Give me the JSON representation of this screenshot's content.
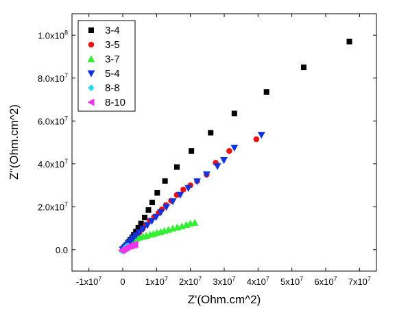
{
  "chart_data": {
    "type": "scatter",
    "xlabel": "Z'(Ohm.cm^2)",
    "ylabel": "Z''(Ohm.cm^2)",
    "xlim": [
      -15000000,
      75000000
    ],
    "ylim": [
      -10000000,
      110000000
    ],
    "x_ticks": [
      {
        "value": -10000000,
        "base": "-1x10",
        "exp": "7"
      },
      {
        "value": 0,
        "base": "0",
        "exp": ""
      },
      {
        "value": 10000000,
        "base": "1x10",
        "exp": "7"
      },
      {
        "value": 20000000,
        "base": "2x10",
        "exp": "7"
      },
      {
        "value": 30000000,
        "base": "3x10",
        "exp": "7"
      },
      {
        "value": 40000000,
        "base": "4x10",
        "exp": "7"
      },
      {
        "value": 50000000,
        "base": "5x10",
        "exp": "7"
      },
      {
        "value": 60000000,
        "base": "6x10",
        "exp": "7"
      },
      {
        "value": 70000000,
        "base": "7x10",
        "exp": "7"
      }
    ],
    "y_ticks": [
      {
        "value": 0,
        "base": "0.0",
        "exp": ""
      },
      {
        "value": 20000000,
        "base": "2.0x10",
        "exp": "7"
      },
      {
        "value": 40000000,
        "base": "4.0x10",
        "exp": "7"
      },
      {
        "value": 60000000,
        "base": "6.0x10",
        "exp": "7"
      },
      {
        "value": 80000000,
        "base": "8.0x10",
        "exp": "7"
      },
      {
        "value": 100000000,
        "base": "1.0x10",
        "exp": "8"
      }
    ],
    "legend_position": "top-left",
    "series": [
      {
        "name": "3-4",
        "marker": "square",
        "color": "#000000",
        "points": [
          [
            0,
            0
          ],
          [
            200000,
            400000
          ],
          [
            500000,
            1000000
          ],
          [
            800000,
            1500000
          ],
          [
            1100000,
            2200000
          ],
          [
            1500000,
            3000000
          ],
          [
            1900000,
            3800000
          ],
          [
            2300000,
            4700000
          ],
          [
            2800000,
            5800000
          ],
          [
            3300000,
            7000000
          ],
          [
            3900000,
            8400000
          ],
          [
            4600000,
            10200000
          ],
          [
            5400000,
            12200000
          ],
          [
            6500000,
            15000000
          ],
          [
            7600000,
            18500000
          ],
          [
            8700000,
            22000000
          ],
          [
            10200000,
            26500000
          ],
          [
            12500000,
            32000000
          ],
          [
            16000000,
            38500000
          ],
          [
            20300000,
            46000000
          ],
          [
            26000000,
            54500000
          ],
          [
            33000000,
            63500000
          ],
          [
            42500000,
            73500000
          ],
          [
            53500000,
            85000000
          ],
          [
            67000000,
            97000000
          ]
        ]
      },
      {
        "name": "3-5",
        "marker": "circle",
        "color": "#ee1111",
        "points": [
          [
            0,
            0
          ],
          [
            300000,
            500000
          ],
          [
            700000,
            1100000
          ],
          [
            1100000,
            1800000
          ],
          [
            1500000,
            2600000
          ],
          [
            2000000,
            3500000
          ],
          [
            2600000,
            4500000
          ],
          [
            3200000,
            5500000
          ],
          [
            4000000,
            6600000
          ],
          [
            4900000,
            8000000
          ],
          [
            5900000,
            9700000
          ],
          [
            6900000,
            11600000
          ],
          [
            8000000,
            13500000
          ],
          [
            9300000,
            15200000
          ],
          [
            10600000,
            17100000
          ],
          [
            11600000,
            18800000
          ],
          [
            12800000,
            20800000
          ],
          [
            14300000,
            22800000
          ],
          [
            16000000,
            25500000
          ],
          [
            17900000,
            28000000
          ],
          [
            20000000,
            30000000
          ],
          [
            22000000,
            32000000
          ],
          [
            24800000,
            35000000
          ],
          [
            27500000,
            40500000
          ],
          [
            31500000,
            46000000
          ],
          [
            39500000,
            51500000
          ]
        ]
      },
      {
        "name": "3-7",
        "marker": "triangle-up",
        "color": "#33ee33",
        "points": [
          [
            0,
            0
          ],
          [
            300000,
            800000
          ],
          [
            600000,
            1500000
          ],
          [
            900000,
            2100000
          ],
          [
            1200000,
            2700000
          ],
          [
            1600000,
            3300000
          ],
          [
            2000000,
            3800000
          ],
          [
            2500000,
            4300000
          ],
          [
            3000000,
            4700000
          ],
          [
            3600000,
            5000000
          ],
          [
            4200000,
            5300000
          ],
          [
            5000000,
            5700000
          ],
          [
            6000000,
            6100000
          ],
          [
            7000000,
            6500000
          ],
          [
            8100000,
            7000000
          ],
          [
            9100000,
            7400000
          ],
          [
            10100000,
            7900000
          ],
          [
            11200000,
            8300000
          ],
          [
            12300000,
            8800000
          ],
          [
            13500000,
            9300000
          ],
          [
            14800000,
            9900000
          ],
          [
            16100000,
            10400000
          ],
          [
            17500000,
            10900000
          ],
          [
            18800000,
            11600000
          ],
          [
            20000000,
            12200000
          ],
          [
            21300000,
            12600000
          ]
        ]
      },
      {
        "name": "5-4",
        "marker": "triangle-down",
        "color": "#1133dd",
        "points": [
          [
            0,
            0
          ],
          [
            400000,
            500000
          ],
          [
            800000,
            1200000
          ],
          [
            1300000,
            2000000
          ],
          [
            1800000,
            3000000
          ],
          [
            2400000,
            4100000
          ],
          [
            3100000,
            5300000
          ],
          [
            3900000,
            6600000
          ],
          [
            4900000,
            8000000
          ],
          [
            6000000,
            9600000
          ],
          [
            7300000,
            11400000
          ],
          [
            8600000,
            13300000
          ],
          [
            9900000,
            15200000
          ],
          [
            11300000,
            17400000
          ],
          [
            12900000,
            19800000
          ],
          [
            14800000,
            22500000
          ],
          [
            17000000,
            25500000
          ],
          [
            19400000,
            28700000
          ],
          [
            22000000,
            31800000
          ],
          [
            24800000,
            35100000
          ],
          [
            28000000,
            38900000
          ],
          [
            29900000,
            41700000
          ],
          [
            33000000,
            47500000
          ],
          [
            41000000,
            53500000
          ]
        ]
      },
      {
        "name": "8-8",
        "marker": "diamond",
        "color": "#22ddee",
        "points": [
          [
            -200000,
            -600000
          ],
          [
            0,
            -200000
          ],
          [
            300000,
            300000
          ],
          [
            600000,
            800000
          ],
          [
            900000,
            1200000
          ],
          [
            1200000,
            1500000
          ],
          [
            1600000,
            1800000
          ]
        ]
      },
      {
        "name": "8-10",
        "marker": "triangle-left",
        "color": "#ee33ee",
        "points": [
          [
            -300000,
            -400000
          ],
          [
            0,
            0
          ],
          [
            300000,
            300000
          ],
          [
            600000,
            600000
          ],
          [
            900000,
            900000
          ],
          [
            1300000,
            1200000
          ],
          [
            1800000,
            1500000
          ],
          [
            2300000,
            1800000
          ],
          [
            2800000,
            2000000
          ],
          [
            3300000,
            2200000
          ],
          [
            3700000,
            2500000
          ]
        ]
      }
    ]
  }
}
